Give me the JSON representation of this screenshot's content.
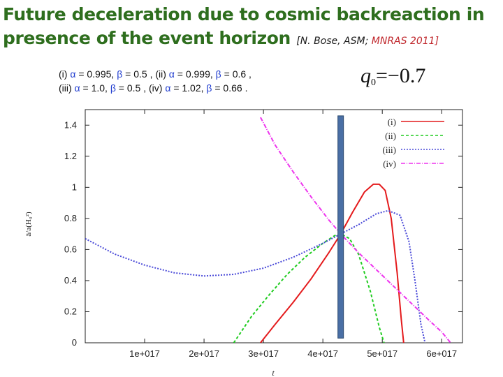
{
  "slide": {
    "title_main": "Future deceleration due to cosmic backreaction in presence of the event horizon",
    "citation_authors": "[N. Bose, ASM;",
    "citation_journal": "MNRAS 2011]",
    "equation_lhs": "q",
    "equation_sub": "0",
    "equation_rhs": "=−0.7",
    "params": {
      "i_label": "(i)",
      "i_a": "= 0.995,",
      "i_b": "= 0.5 ,",
      "ii_label": "(ii)",
      "ii_a": "= 0.999,",
      "ii_b": "= 0.6 ,",
      "iii_label": "(iii)",
      "iii_a": "= 1.0,",
      "iii_b": "= 0.5 ,",
      "iv_label": "(iv)",
      "iv_a": "= 1.02,",
      "iv_b": "= 0.66 .",
      "alpha_symbol": "α",
      "beta_symbol": "β"
    }
  },
  "chart_data": {
    "type": "line",
    "xlabel": "t",
    "ylabel": "ä/a(H₀²)",
    "xlim": [
      0.0,
      6.35e+17
    ],
    "ylim": [
      0,
      1.5
    ],
    "x_ticks": [
      1e+17,
      2e+17,
      3e+17,
      4e+17,
      5e+17,
      6e+17
    ],
    "x_tick_labels": [
      "1e+017",
      "2e+017",
      "3e+017",
      "4e+017",
      "5e+017",
      "6e+017"
    ],
    "y_ticks": [
      0,
      0.2,
      0.4,
      0.6,
      0.8,
      1.0,
      1.2,
      1.4
    ],
    "y_tick_labels": [
      "0",
      "0.2",
      "0.4",
      "0.6",
      "0.8",
      "1",
      "1.2",
      "1.4"
    ],
    "grid": false,
    "legend_position": "top-right",
    "marker": {
      "label": "event horizon",
      "x": 4.3e+17,
      "y_range": [
        0.03,
        1.46
      ],
      "color": "#4a6fa5"
    },
    "series": [
      {
        "name": "(i)",
        "color": "#e41a1c",
        "dash": "solid",
        "x": [
          2.95e+17,
          3.2e+17,
          3.5e+17,
          3.8e+17,
          4.1e+17,
          4.3e+17,
          4.5e+17,
          4.7e+17,
          4.85e+17,
          4.95e+17,
          5.05e+17,
          5.15e+17,
          5.25e+17,
          5.32e+17,
          5.36e+17
        ],
        "y": [
          0.0,
          0.12,
          0.26,
          0.41,
          0.58,
          0.7,
          0.84,
          0.97,
          1.02,
          1.02,
          0.98,
          0.8,
          0.45,
          0.15,
          0.0
        ]
      },
      {
        "name": "(ii)",
        "color": "#1fcc1f",
        "dash": "4,3",
        "x": [
          2.5e+17,
          2.8e+17,
          3.1e+17,
          3.4e+17,
          3.7e+17,
          4e+17,
          4.2e+17,
          4.3e+17,
          4.45e+17,
          4.6e+17,
          4.8e+17,
          4.95e+17,
          5.03e+17
        ],
        "y": [
          0.0,
          0.17,
          0.31,
          0.44,
          0.55,
          0.64,
          0.69,
          0.7,
          0.67,
          0.57,
          0.33,
          0.1,
          0.0
        ]
      },
      {
        "name": "(iii)",
        "color": "#4a4ad8",
        "dash": "2,2",
        "x": [
          0.0,
          5e+16,
          1e+17,
          1.5e+17,
          2e+17,
          2.5e+17,
          3e+17,
          3.5e+17,
          4e+17,
          4.3e+17,
          4.6e+17,
          4.9e+17,
          5.1e+17,
          5.3e+17,
          5.45e+17,
          5.55e+17,
          5.65e+17,
          5.72e+17
        ],
        "y": [
          0.67,
          0.57,
          0.5,
          0.45,
          0.43,
          0.44,
          0.48,
          0.55,
          0.64,
          0.7,
          0.76,
          0.83,
          0.85,
          0.82,
          0.65,
          0.4,
          0.12,
          0.0
        ]
      },
      {
        "name": "(iv)",
        "color": "#ee33ee",
        "dash": "6,2,1,2",
        "x": [
          2.95e+17,
          3.2e+17,
          3.5e+17,
          3.8e+17,
          4.1e+17,
          4.3e+17,
          4.6e+17,
          4.9e+17,
          5.2e+17,
          5.5e+17,
          5.8e+17,
          6e+17,
          6.15e+17
        ],
        "y": [
          1.45,
          1.27,
          1.1,
          0.94,
          0.79,
          0.7,
          0.58,
          0.47,
          0.36,
          0.25,
          0.14,
          0.07,
          0.0
        ]
      }
    ]
  }
}
